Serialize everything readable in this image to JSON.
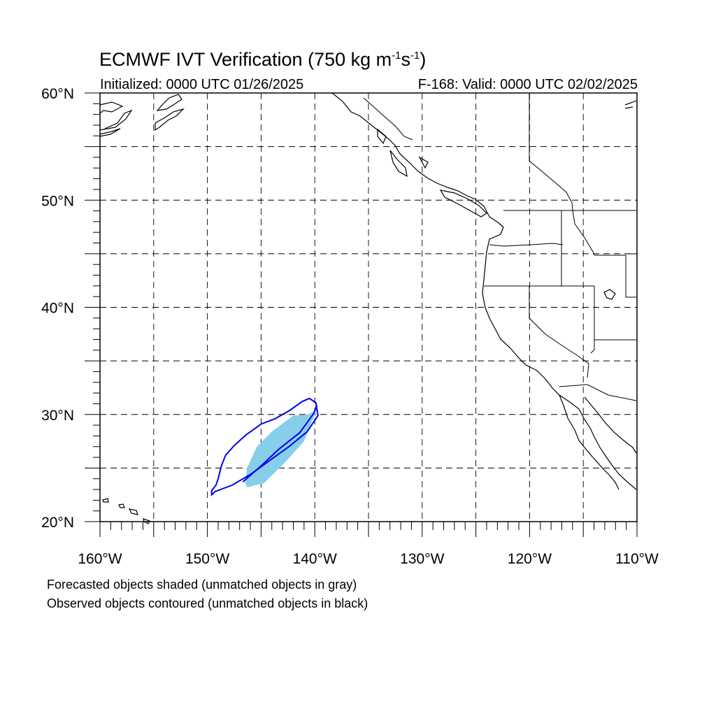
{
  "header": {
    "title_prefix": "ECMWF IVT Verification (750 kg m",
    "title_sup1": "-1",
    "title_mid": "s",
    "title_sup2": "-1",
    "title_suffix": ")",
    "initialized": "Initialized: 0000 UTC 01/26/2025",
    "valid": "F-168: Valid: 0000 UTC 02/02/2025"
  },
  "map": {
    "lon_range": [
      -160,
      -110
    ],
    "lat_range": [
      20,
      60
    ],
    "lon_labels": [
      "160°W",
      "150°W",
      "140°W",
      "130°W",
      "120°W",
      "110°W"
    ],
    "lat_labels": [
      "20°N",
      "30°N",
      "40°N",
      "50°N",
      "60°N"
    ],
    "grid": "dashed every 5°",
    "forecast_object_color": "#87CEEB",
    "observed_object_color": "#0000EE",
    "forecast_object": [
      [
        -146.3,
        23.2
      ],
      [
        -144.7,
        23.6
      ],
      [
        -142.8,
        25.5
      ],
      [
        -141.0,
        27.5
      ],
      [
        -139.8,
        30.5
      ],
      [
        -140.6,
        30.0
      ],
      [
        -142.0,
        29.9
      ],
      [
        -144.0,
        28.4
      ],
      [
        -145.4,
        27.0
      ],
      [
        -146.3,
        25.0
      ],
      [
        -146.5,
        23.6
      ]
    ],
    "observed_object": [
      [
        -149.6,
        22.5
      ],
      [
        -149.3,
        22.8
      ],
      [
        -147.7,
        23.4
      ],
      [
        -146.0,
        24.4
      ],
      [
        -144.2,
        25.7
      ],
      [
        -142.4,
        27.0
      ],
      [
        -140.7,
        28.4
      ],
      [
        -139.7,
        29.9
      ],
      [
        -139.9,
        31.1
      ],
      [
        -140.5,
        31.5
      ],
      [
        -141.2,
        31.2
      ],
      [
        -142.3,
        30.4
      ],
      [
        -143.7,
        29.6
      ],
      [
        -145.0,
        29.1
      ],
      [
        -146.4,
        28.1
      ],
      [
        -147.5,
        27.1
      ],
      [
        -148.3,
        26.2
      ],
      [
        -148.7,
        25.2
      ],
      [
        -149.0,
        24.0
      ],
      [
        -149.2,
        23.4
      ],
      [
        -149.6,
        22.9
      ]
    ],
    "observed_axis": [
      [
        -146.7,
        23.7
      ],
      [
        -145.0,
        25.2
      ],
      [
        -143.3,
        26.8
      ],
      [
        -141.4,
        28.3
      ],
      [
        -140.1,
        30.1
      ],
      [
        -139.8,
        30.9
      ]
    ]
  },
  "notes": {
    "forecast": "Forecasted objects shaded (unmatched objects in gray)",
    "observed": "Observed objects contoured (unmatched objects in black)"
  }
}
